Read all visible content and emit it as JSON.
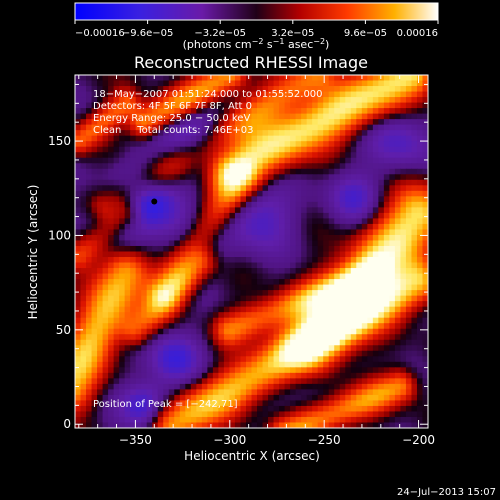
{
  "chart_data": {
    "type": "heatmap",
    "title": "Reconstructed RHESSI Image",
    "xlabel": "Heliocentric X (arcsec)",
    "ylabel": "Heliocentric Y (arcsec)",
    "xlim": [
      -382,
      -195
    ],
    "ylim": [
      -2,
      185
    ],
    "x_ticks": [
      -350,
      -300,
      -250,
      -200
    ],
    "x_tick_labels": [
      "−350",
      "−300",
      "−250",
      "−200"
    ],
    "y_ticks": [
      0,
      50,
      100,
      150
    ],
    "y_tick_labels": [
      "0",
      "50",
      "100",
      "150"
    ],
    "colorbar": {
      "min": -0.00016,
      "max": 0.00016,
      "ticks": [
        -0.00016,
        -9.6e-05,
        -3.2e-05,
        3.2e-05,
        9.6e-05,
        0.00016
      ],
      "tick_labels": [
        "−0.00016",
        "−9.6e−05",
        "−3.2e−05",
        "3.2e−05",
        "9.6e−05",
        "0.00016"
      ],
      "unit_main": "(photons cm",
      "unit_sup1": "−2",
      "unit_mid": " s",
      "unit_sup2": "−1",
      "unit_mid2": " asec",
      "unit_sup3": "−2",
      "unit_end": ")"
    },
    "annotations": [
      "18−May−2007 01:51:24.000 to 01:55:52.000",
      "Detectors: 4F 5F 6F 7F 8F, Att 0",
      "Energy Range: 25.0 − 50.0 keV",
      "Clean     Total counts: 7.46E+03"
    ],
    "peak_label": "Position of Peak = [−242,71]",
    "peak": [
      -242,
      71
    ],
    "marker": [
      -340,
      118
    ],
    "footer": "24−Jul−2013 15:07",
    "ridges": [
      {
        "x0": -300,
        "y0": 135,
        "x1": -205,
        "y1": 185,
        "w": 9,
        "v": 1.0
      },
      {
        "x0": -365,
        "y0": 115,
        "x1": -255,
        "y1": 185,
        "w": 7,
        "v": 0.6
      },
      {
        "x0": -345,
        "y0": 160,
        "x1": -300,
        "y1": 185,
        "w": 6,
        "v": 0.8
      },
      {
        "x0": -380,
        "y0": 150,
        "x1": -355,
        "y1": 170,
        "w": 5,
        "v": 0.55
      },
      {
        "x0": -335,
        "y0": 70,
        "x1": -295,
        "y1": 130,
        "w": 7,
        "v": 0.65
      },
      {
        "x0": -385,
        "y0": 20,
        "x1": -355,
        "y1": 80,
        "w": 9,
        "v": 0.85
      },
      {
        "x0": -350,
        "y0": 50,
        "x1": -315,
        "y1": 85,
        "w": 6,
        "v": 0.5
      },
      {
        "x0": -260,
        "y0": 40,
        "x1": -200,
        "y1": 110,
        "w": 11,
        "v": 1.0
      },
      {
        "x0": -300,
        "y0": 50,
        "x1": -225,
        "y1": 80,
        "w": 6,
        "v": 0.6
      },
      {
        "x0": -330,
        "y0": 0,
        "x1": -200,
        "y1": 75,
        "w": 8,
        "v": 0.85
      },
      {
        "x0": -270,
        "y0": -5,
        "x1": -210,
        "y1": 20,
        "w": 6,
        "v": 0.7
      },
      {
        "x0": -380,
        "y0": 90,
        "x1": -355,
        "y1": 110,
        "w": 6,
        "v": 0.55
      }
    ],
    "wells": [
      {
        "x": -345,
        "y": 120,
        "w": 13,
        "v": -0.7
      },
      {
        "x": -318,
        "y": 150,
        "w": 14,
        "v": -0.6
      },
      {
        "x": -365,
        "y": 105,
        "w": 10,
        "v": -0.5
      },
      {
        "x": -330,
        "y": 35,
        "w": 10,
        "v": -0.5
      },
      {
        "x": -345,
        "y": 10,
        "w": 9,
        "v": -0.55
      },
      {
        "x": -262,
        "y": 30,
        "w": 10,
        "v": -0.45
      },
      {
        "x": -235,
        "y": 120,
        "w": 10,
        "v": -0.4
      },
      {
        "x": -320,
        "y": 95,
        "w": 12,
        "v": -0.4
      },
      {
        "x": -285,
        "y": 110,
        "w": 13,
        "v": -0.45
      },
      {
        "x": -210,
        "y": 150,
        "w": 12,
        "v": -0.4
      }
    ]
  }
}
